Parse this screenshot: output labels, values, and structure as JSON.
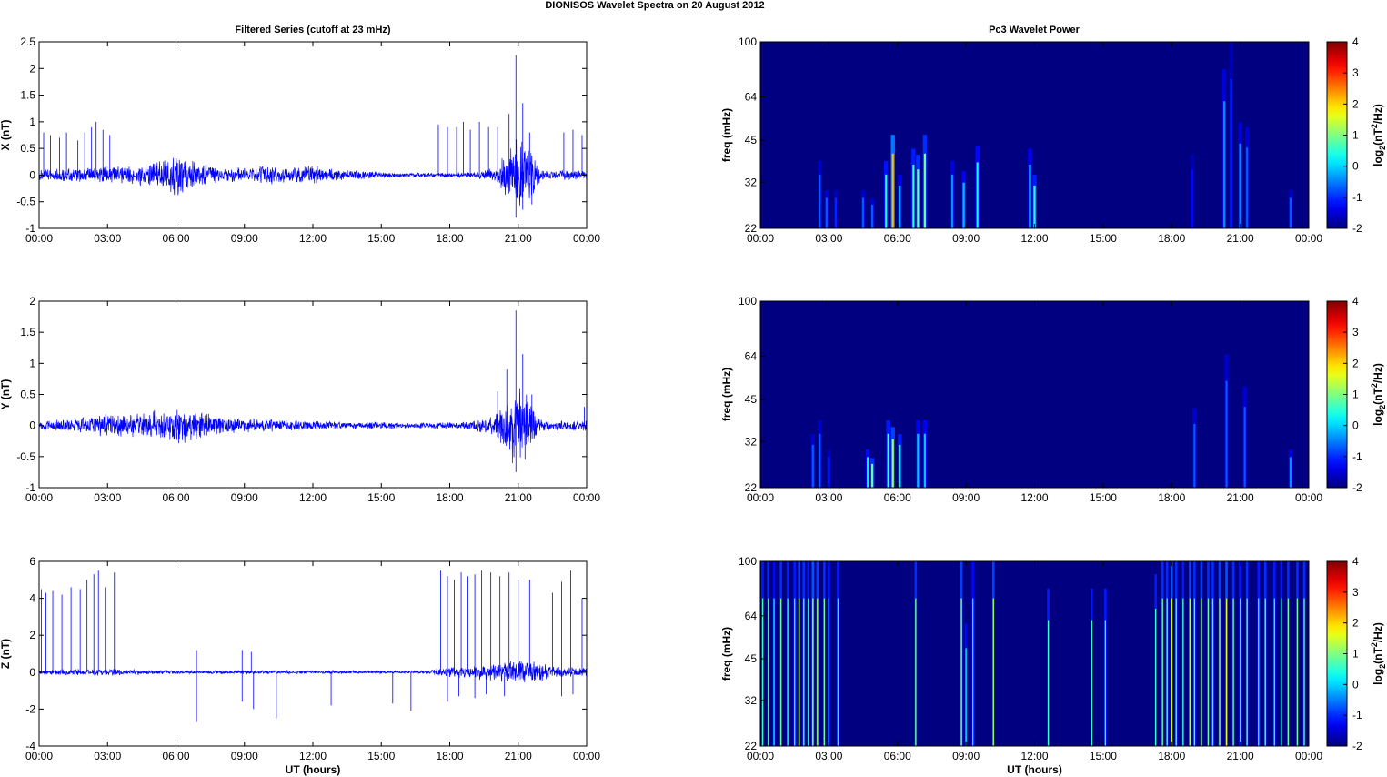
{
  "title": "DIONISOS Wavelet Spectra on 20 August    2012",
  "left_title": "Filtered Series (cutoff at 23 mHz)",
  "right_title": "Pc3 Wavelet Power",
  "colors": {
    "series": "#0000ff",
    "background": "#ffffff",
    "axis": "#000000"
  },
  "chart_data": [
    {
      "type": "line",
      "ylabel": "X (nT)",
      "xlabel": "",
      "xticks": [
        "00:00",
        "03:00",
        "06:00",
        "09:00",
        "12:00",
        "15:00",
        "18:00",
        "21:00",
        "00:00"
      ],
      "xlim": [
        0,
        24
      ],
      "ylim": [
        -1,
        2.5
      ],
      "yticks": [
        "-1",
        "-0.5",
        "0",
        "0.5",
        "1",
        "1.5",
        "2",
        "2.5"
      ],
      "noise_envelope": {
        "x": [
          0,
          2,
          3,
          4,
          5,
          6,
          7,
          8,
          9,
          10,
          11,
          12,
          13,
          14,
          15,
          16,
          17,
          18,
          19,
          20,
          20.5,
          21,
          21.5,
          22,
          23,
          24
        ],
        "amp": [
          0.12,
          0.15,
          0.2,
          0.2,
          0.25,
          0.45,
          0.3,
          0.15,
          0.15,
          0.2,
          0.15,
          0.2,
          0.12,
          0.1,
          0.06,
          0.05,
          0.05,
          0.05,
          0.05,
          0.15,
          0.5,
          0.85,
          0.6,
          0.12,
          0.1,
          0.1
        ]
      },
      "spikes": [
        [
          0.2,
          0.8
        ],
        [
          0.5,
          0.75
        ],
        [
          0.9,
          0.7
        ],
        [
          1.2,
          0.8
        ],
        [
          1.7,
          0.65
        ],
        [
          2.0,
          0.8
        ],
        [
          2.3,
          0.9
        ],
        [
          2.5,
          1.0
        ],
        [
          2.8,
          0.85
        ],
        [
          3.1,
          0.75
        ],
        [
          17.5,
          0.95
        ],
        [
          17.9,
          0.9
        ],
        [
          18.3,
          0.9
        ],
        [
          18.6,
          1.0
        ],
        [
          18.9,
          0.85
        ],
        [
          19.3,
          1.0
        ],
        [
          19.7,
          0.9
        ],
        [
          20.1,
          0.9
        ],
        [
          20.6,
          1.15
        ],
        [
          20.9,
          2.25
        ],
        [
          21.2,
          1.35
        ],
        [
          21.5,
          0.8
        ],
        [
          23.0,
          0.8
        ],
        [
          23.4,
          0.85
        ],
        [
          23.8,
          0.75
        ]
      ],
      "dips": [
        [
          20.9,
          -0.8
        ],
        [
          21.2,
          -0.65
        ],
        [
          21.6,
          -0.55
        ]
      ]
    },
    {
      "type": "line",
      "ylabel": "Y (nT)",
      "xlabel": "",
      "xticks": [
        "00:00",
        "03:00",
        "06:00",
        "09:00",
        "12:00",
        "15:00",
        "18:00",
        "21:00",
        "00:00"
      ],
      "xlim": [
        0,
        24
      ],
      "ylim": [
        -1,
        2
      ],
      "yticks": [
        "-1",
        "-0.5",
        "0",
        "0.5",
        "1",
        "1.5",
        "2"
      ],
      "noise_envelope": {
        "x": [
          0,
          1,
          2,
          3,
          4,
          5,
          6,
          7,
          8,
          9,
          10,
          11,
          12,
          13,
          14,
          15,
          16,
          17,
          18,
          19,
          20,
          20.5,
          21,
          21.5,
          22,
          23,
          24
        ],
        "amp": [
          0.08,
          0.1,
          0.15,
          0.2,
          0.2,
          0.25,
          0.35,
          0.25,
          0.15,
          0.12,
          0.12,
          0.1,
          0.08,
          0.07,
          0.06,
          0.06,
          0.05,
          0.05,
          0.06,
          0.08,
          0.2,
          0.5,
          0.8,
          0.45,
          0.1,
          0.08,
          0.1
        ]
      },
      "spikes": [
        [
          20.1,
          0.55
        ],
        [
          20.5,
          0.9
        ],
        [
          20.9,
          1.85
        ],
        [
          21.2,
          1.15
        ],
        [
          21.6,
          0.5
        ],
        [
          23.9,
          0.3
        ]
      ],
      "dips": [
        [
          20.9,
          -0.75
        ],
        [
          21.3,
          -0.55
        ]
      ]
    },
    {
      "type": "line",
      "ylabel": "Z (nT)",
      "xlabel": "UT (hours)",
      "xticks": [
        "00:00",
        "03:00",
        "06:00",
        "09:00",
        "12:00",
        "15:00",
        "18:00",
        "21:00",
        "00:00"
      ],
      "xlim": [
        0,
        24
      ],
      "ylim": [
        -4,
        6
      ],
      "yticks": [
        "-4",
        "-2",
        "0",
        "2",
        "4",
        "6"
      ],
      "noise_envelope": {
        "x": [
          0,
          3,
          4,
          6,
          8,
          10,
          12,
          14,
          16,
          17,
          18,
          19,
          20,
          21,
          22,
          23,
          24
        ],
        "amp": [
          0.15,
          0.2,
          0.15,
          0.1,
          0.1,
          0.1,
          0.1,
          0.08,
          0.08,
          0.1,
          0.3,
          0.4,
          0.5,
          0.8,
          0.5,
          0.3,
          0.3
        ]
      },
      "spikes": [
        [
          0.1,
          4.5
        ],
        [
          0.3,
          4.3
        ],
        [
          0.6,
          4.4
        ],
        [
          1.0,
          4.2
        ],
        [
          1.4,
          4.6
        ],
        [
          1.8,
          4.5
        ],
        [
          2.1,
          5.0
        ],
        [
          2.4,
          5.3
        ],
        [
          2.6,
          5.5
        ],
        [
          2.9,
          4.6
        ],
        [
          3.3,
          5.4
        ],
        [
          6.9,
          1.2
        ],
        [
          8.9,
          1.2
        ],
        [
          9.3,
          1.1
        ],
        [
          17.6,
          5.5
        ],
        [
          17.9,
          5.2
        ],
        [
          18.2,
          5.0
        ],
        [
          18.5,
          5.4
        ],
        [
          18.8,
          5.2
        ],
        [
          19.1,
          5.3
        ],
        [
          19.4,
          5.5
        ],
        [
          19.8,
          5.4
        ],
        [
          20.2,
          5.2
        ],
        [
          20.6,
          5.4
        ],
        [
          21.0,
          5.0
        ],
        [
          21.5,
          5.0
        ],
        [
          22.5,
          4.3
        ],
        [
          22.9,
          4.9
        ],
        [
          23.3,
          5.5
        ],
        [
          23.8,
          4.0
        ]
      ],
      "dips": [
        [
          6.9,
          -2.7
        ],
        [
          8.9,
          -1.6
        ],
        [
          9.4,
          -2.0
        ],
        [
          10.4,
          -2.5
        ],
        [
          12.8,
          -1.8
        ],
        [
          15.5,
          -1.7
        ],
        [
          16.3,
          -2.1
        ],
        [
          17.9,
          -1.6
        ],
        [
          18.4,
          -1.3
        ],
        [
          19.1,
          -1.4
        ],
        [
          19.6,
          -1.2
        ],
        [
          20.4,
          -1.3
        ],
        [
          22.9,
          -1.3
        ],
        [
          23.4,
          -1.2
        ]
      ]
    },
    {
      "type": "heatmap",
      "ylabel": "freq (mHz)",
      "xlabel": "",
      "xticks": [
        "00:00",
        "03:00",
        "06:00",
        "09:00",
        "12:00",
        "15:00",
        "18:00",
        "21:00",
        "00:00"
      ],
      "xlim": [
        0,
        24
      ],
      "ylim": [
        22,
        100
      ],
      "yscale": "log",
      "yticks": [
        "22",
        "32",
        "45",
        "64",
        "100"
      ],
      "colorbar": {
        "label_prefix": "log",
        "label_sub": "2",
        "label_body": "(nT",
        "label_sup": "2",
        "label_end": "/Hz)",
        "ticks": [
          "-2",
          "-1",
          "0",
          "1",
          "2",
          "3",
          "4"
        ],
        "clim": [
          -2,
          4
        ],
        "colormap": "jet"
      },
      "bursts": [
        [
          2.6,
          38,
          0.8
        ],
        [
          2.9,
          30,
          0.8
        ],
        [
          3.3,
          30,
          0.6
        ],
        [
          4.5,
          30,
          0.8
        ],
        [
          4.9,
          28,
          0.8
        ],
        [
          5.5,
          38,
          1.5
        ],
        [
          5.8,
          47,
          2.6
        ],
        [
          6.1,
          34,
          1.2
        ],
        [
          6.7,
          42,
          1.6
        ],
        [
          6.9,
          40,
          1.8
        ],
        [
          7.2,
          47,
          1.8
        ],
        [
          8.4,
          38,
          1.0
        ],
        [
          8.9,
          35,
          1.2
        ],
        [
          9.5,
          43,
          1.4
        ],
        [
          11.8,
          42,
          1.2
        ],
        [
          12.0,
          34,
          1.6
        ],
        [
          18.9,
          40,
          0.5
        ],
        [
          20.3,
          80,
          1.0
        ],
        [
          20.6,
          100,
          0.6
        ],
        [
          21.0,
          52,
          1.0
        ],
        [
          21.3,
          50,
          0.8
        ],
        [
          23.2,
          30,
          0.8
        ]
      ]
    },
    {
      "type": "heatmap",
      "ylabel": "freq (mHz)",
      "xlabel": "",
      "xticks": [
        "00:00",
        "03:00",
        "06:00",
        "09:00",
        "12:00",
        "15:00",
        "18:00",
        "21:00",
        "00:00"
      ],
      "xlim": [
        0,
        24
      ],
      "ylim": [
        22,
        100
      ],
      "yscale": "log",
      "yticks": [
        "22",
        "32",
        "45",
        "64",
        "100"
      ],
      "colorbar": {
        "label_prefix": "log",
        "label_sub": "2",
        "label_body": "(nT",
        "label_sup": "2",
        "label_end": "/Hz)",
        "ticks": [
          "-2",
          "-1",
          "0",
          "1",
          "2",
          "3",
          "4"
        ],
        "clim": [
          -2,
          4
        ],
        "colormap": "jet"
      },
      "bursts": [
        [
          2.3,
          34,
          0.8
        ],
        [
          2.6,
          38,
          0.8
        ],
        [
          3.0,
          30,
          0.6
        ],
        [
          4.7,
          30,
          1.4
        ],
        [
          4.9,
          28,
          1.8
        ],
        [
          5.6,
          38,
          1.6
        ],
        [
          5.8,
          36,
          2.0
        ],
        [
          6.1,
          34,
          1.6
        ],
        [
          6.9,
          38,
          1.2
        ],
        [
          7.2,
          38,
          1.2
        ],
        [
          19.0,
          42,
          0.8
        ],
        [
          20.4,
          65,
          0.8
        ],
        [
          21.2,
          50,
          0.8
        ],
        [
          23.2,
          30,
          1.0
        ]
      ]
    },
    {
      "type": "heatmap",
      "ylabel": "freq (mHz)",
      "xlabel": "UT (hours)",
      "xticks": [
        "00:00",
        "03:00",
        "06:00",
        "09:00",
        "12:00",
        "15:00",
        "18:00",
        "21:00",
        "00:00"
      ],
      "xlim": [
        0,
        24
      ],
      "ylim": [
        22,
        100
      ],
      "yscale": "log",
      "yticks": [
        "22",
        "32",
        "45",
        "64",
        "100"
      ],
      "colorbar": {
        "label_prefix": "log",
        "label_sub": "2",
        "label_body": "(nT",
        "label_sup": "2",
        "label_end": "/Hz)",
        "ticks": [
          "-2",
          "-1",
          "0",
          "1",
          "2",
          "3",
          "4"
        ],
        "clim": [
          -2,
          4
        ],
        "colormap": "jet"
      },
      "stripes": [
        [
          0.1,
          100,
          1.6
        ],
        [
          0.35,
          100,
          1.8
        ],
        [
          0.6,
          100,
          1.4
        ],
        [
          0.9,
          100,
          1.8
        ],
        [
          1.2,
          100,
          1.6
        ],
        [
          1.5,
          100,
          1.6
        ],
        [
          1.7,
          100,
          2.0
        ],
        [
          1.9,
          100,
          1.8
        ],
        [
          2.1,
          100,
          1.6
        ],
        [
          2.3,
          100,
          2.2
        ],
        [
          2.5,
          100,
          2.0
        ],
        [
          2.8,
          100,
          1.8
        ],
        [
          3.0,
          100,
          1.6
        ],
        [
          3.4,
          100,
          1.6
        ],
        [
          6.8,
          100,
          1.8
        ],
        [
          8.8,
          100,
          2.0
        ],
        [
          9.0,
          60,
          1.4
        ],
        [
          9.3,
          100,
          1.4
        ],
        [
          10.2,
          100,
          2.0
        ],
        [
          12.6,
          80,
          1.6
        ],
        [
          14.5,
          80,
          1.6
        ],
        [
          15.1,
          80,
          1.6
        ],
        [
          17.3,
          90,
          1.6
        ],
        [
          17.6,
          100,
          1.8
        ],
        [
          17.8,
          100,
          1.8
        ],
        [
          18.0,
          100,
          2.2
        ],
        [
          18.2,
          100,
          1.8
        ],
        [
          18.5,
          100,
          1.6
        ],
        [
          18.8,
          100,
          2.0
        ],
        [
          19.0,
          100,
          1.8
        ],
        [
          19.3,
          100,
          2.0
        ],
        [
          19.6,
          100,
          1.8
        ],
        [
          19.8,
          100,
          1.8
        ],
        [
          20.1,
          100,
          2.0
        ],
        [
          20.4,
          100,
          2.2
        ],
        [
          20.7,
          100,
          1.8
        ],
        [
          21.0,
          100,
          1.6
        ],
        [
          21.3,
          100,
          1.8
        ],
        [
          21.8,
          100,
          1.6
        ],
        [
          22.1,
          100,
          1.8
        ],
        [
          22.5,
          100,
          1.6
        ],
        [
          22.8,
          100,
          1.6
        ],
        [
          23.1,
          100,
          1.8
        ],
        [
          23.5,
          100,
          1.8
        ],
        [
          23.8,
          100,
          1.8
        ]
      ]
    }
  ]
}
